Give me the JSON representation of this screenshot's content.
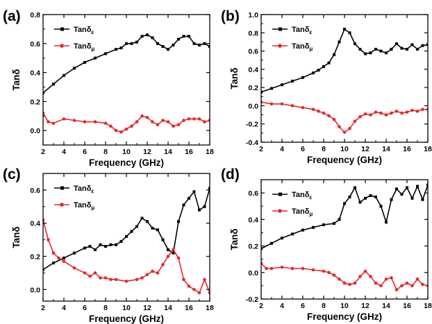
{
  "chart_data": [
    {
      "type": "line",
      "panel_label": "(a)",
      "xlabel": "Frequency (GHz)",
      "ylabel": "Tanδ",
      "xlim": [
        2,
        18
      ],
      "ylim": [
        -0.1,
        0.8
      ],
      "xticks": [
        2,
        4,
        6,
        8,
        10,
        12,
        14,
        16,
        18
      ],
      "yticks": [
        0.0,
        0.2,
        0.4,
        0.6,
        0.8
      ],
      "ytick_labels": [
        "0.0",
        "0.2",
        "0.4",
        "0.6",
        "0.8"
      ],
      "legend_position": "top-left",
      "series": [
        {
          "name": "Tanδε",
          "name_main": "Tanδ",
          "name_sub": "ε",
          "color": "#000000",
          "marker": "square",
          "x": [
            2,
            3,
            4,
            5,
            6,
            7,
            8,
            9,
            9.5,
            10,
            10.5,
            11,
            11.5,
            12,
            12.5,
            13,
            13.5,
            14,
            14.5,
            15,
            15.5,
            16,
            16.5,
            17,
            17.5,
            18
          ],
          "y": [
            0.26,
            0.32,
            0.38,
            0.43,
            0.47,
            0.5,
            0.53,
            0.56,
            0.57,
            0.6,
            0.6,
            0.61,
            0.65,
            0.66,
            0.64,
            0.6,
            0.58,
            0.56,
            0.59,
            0.63,
            0.65,
            0.65,
            0.6,
            0.59,
            0.6,
            0.58
          ]
        },
        {
          "name": "Tanδμ",
          "name_main": "Tanδ",
          "name_sub": "μ",
          "color": "#e8262b",
          "marker": "circle",
          "x": [
            2,
            2.5,
            3,
            4,
            5,
            6,
            7,
            8,
            8.5,
            9,
            9.5,
            10,
            10.5,
            11,
            11.5,
            12,
            12.5,
            13,
            13.5,
            14,
            14.5,
            15,
            15.5,
            16,
            16.5,
            17,
            17.5,
            18
          ],
          "y": [
            0.12,
            0.06,
            0.05,
            0.08,
            0.07,
            0.06,
            0.06,
            0.05,
            0.03,
            0.0,
            -0.01,
            0.01,
            0.03,
            0.06,
            0.1,
            0.09,
            0.06,
            0.04,
            0.07,
            0.06,
            0.03,
            0.04,
            0.07,
            0.08,
            0.08,
            0.08,
            0.06,
            0.07
          ]
        }
      ]
    },
    {
      "type": "line",
      "panel_label": "(b)",
      "xlabel": "Frequency (GHz)",
      "ylabel": "Tanδ",
      "xlim": [
        2,
        18
      ],
      "ylim": [
        -0.4,
        1.0
      ],
      "xticks": [
        2,
        4,
        6,
        8,
        10,
        12,
        14,
        16,
        18
      ],
      "yticks": [
        -0.4,
        -0.2,
        0.0,
        0.2,
        0.4,
        0.6,
        0.8,
        1.0
      ],
      "ytick_labels": [
        "-0.4",
        "-0.2",
        "0.0",
        "0.2",
        "0.4",
        "0.6",
        "0.8",
        "1.0"
      ],
      "legend_position": "top-left",
      "series": [
        {
          "name": "Tanδε",
          "name_main": "Tanδ",
          "name_sub": "ε",
          "color": "#000000",
          "marker": "square",
          "x": [
            2,
            3,
            4,
            5,
            6,
            7,
            7.5,
            8,
            8.5,
            9,
            9.5,
            10,
            10.5,
            11,
            11.5,
            12,
            12.5,
            13,
            13.5,
            14,
            14.5,
            15,
            15.5,
            16,
            16.5,
            17,
            17.5,
            18
          ],
          "y": [
            0.15,
            0.19,
            0.23,
            0.27,
            0.31,
            0.36,
            0.39,
            0.43,
            0.47,
            0.56,
            0.7,
            0.84,
            0.8,
            0.68,
            0.62,
            0.57,
            0.58,
            0.62,
            0.6,
            0.58,
            0.62,
            0.68,
            0.63,
            0.62,
            0.67,
            0.62,
            0.66,
            0.67
          ]
        },
        {
          "name": "Tanδμ",
          "name_main": "Tanδ",
          "name_sub": "μ",
          "color": "#e8262b",
          "marker": "circle",
          "x": [
            2,
            3,
            4,
            5,
            6,
            7,
            7.5,
            8,
            8.5,
            9,
            9.5,
            10,
            10.5,
            11,
            11.5,
            12,
            12.5,
            13,
            13.5,
            14,
            14.5,
            15,
            15.5,
            16,
            16.5,
            17,
            17.5,
            18
          ],
          "y": [
            0.04,
            0.02,
            0.02,
            0.0,
            -0.02,
            -0.04,
            -0.06,
            -0.08,
            -0.11,
            -0.15,
            -0.23,
            -0.29,
            -0.25,
            -0.17,
            -0.12,
            -0.09,
            -0.1,
            -0.07,
            -0.08,
            -0.1,
            -0.08,
            -0.06,
            -0.08,
            -0.07,
            -0.05,
            -0.06,
            -0.04,
            -0.04
          ]
        }
      ]
    },
    {
      "type": "line",
      "panel_label": "(c)",
      "xlabel": "Frequency (GHz)",
      "ylabel": "Tanδ",
      "xlim": [
        2,
        18
      ],
      "ylim": [
        -0.07,
        0.7
      ],
      "xticks": [
        2,
        4,
        6,
        8,
        10,
        12,
        14,
        16,
        18
      ],
      "yticks": [
        0.0,
        0.2,
        0.4,
        0.6
      ],
      "ytick_labels": [
        "0.0",
        "0.2",
        "0.4",
        "0.6"
      ],
      "legend_position": "top-left",
      "series": [
        {
          "name": "Tanδε",
          "name_main": "Tanδ",
          "name_sub": "ε",
          "color": "#000000",
          "marker": "square",
          "x": [
            2,
            3,
            4,
            5,
            6,
            6.5,
            7,
            7.5,
            8,
            8.5,
            9,
            9.5,
            10,
            10.5,
            11,
            11.5,
            12,
            12.5,
            13,
            13.5,
            14,
            14.5,
            15,
            15.5,
            16,
            16.5,
            17,
            17.5,
            18
          ],
          "y": [
            0.12,
            0.16,
            0.19,
            0.22,
            0.25,
            0.26,
            0.24,
            0.27,
            0.26,
            0.27,
            0.27,
            0.29,
            0.32,
            0.35,
            0.38,
            0.43,
            0.41,
            0.37,
            0.36,
            0.3,
            0.24,
            0.22,
            0.41,
            0.51,
            0.55,
            0.59,
            0.48,
            0.5,
            0.61
          ]
        },
        {
          "name": "Tanδμ",
          "name_main": "Tanδ",
          "name_sub": "μ",
          "color": "#e8262b",
          "marker": "circle",
          "x": [
            2,
            2.5,
            3,
            3.5,
            4,
            5,
            6,
            6.5,
            7,
            7.5,
            8,
            8.5,
            9,
            10,
            11,
            11.5,
            12,
            12.5,
            13,
            13.5,
            14,
            14.5,
            15,
            15.5,
            16,
            16.5,
            17,
            17.5,
            18
          ],
          "y": [
            0.42,
            0.3,
            0.22,
            0.19,
            0.17,
            0.13,
            0.1,
            0.08,
            0.1,
            0.07,
            0.07,
            0.06,
            0.06,
            0.05,
            0.06,
            0.07,
            0.09,
            0.11,
            0.1,
            0.15,
            0.2,
            0.24,
            0.19,
            0.06,
            0.02,
            0.0,
            -0.02,
            0.06,
            -0.02
          ]
        }
      ]
    },
    {
      "type": "line",
      "panel_label": "(d)",
      "xlabel": "Frequency (GHz)",
      "ylabel": "Tanδ",
      "xlim": [
        2,
        18
      ],
      "ylim": [
        -0.2,
        0.7
      ],
      "xticks": [
        2,
        4,
        6,
        8,
        10,
        12,
        14,
        16,
        18
      ],
      "yticks": [
        -0.2,
        0.0,
        0.2,
        0.4,
        0.6
      ],
      "ytick_labels": [
        "-0.2",
        "0.0",
        "0.2",
        "0.4",
        "0.6"
      ],
      "legend_position": "top-left",
      "series": [
        {
          "name": "Tanδε",
          "name_main": "Tanδ",
          "name_sub": "ε",
          "color": "#000000",
          "marker": "square",
          "x": [
            2,
            3,
            4,
            5,
            6,
            7,
            8,
            9,
            9.5,
            10,
            10.5,
            11,
            11.5,
            12,
            12.5,
            13,
            13.5,
            14,
            14.5,
            15,
            15.5,
            16,
            16.5,
            17,
            17.5,
            18
          ],
          "y": [
            0.18,
            0.22,
            0.26,
            0.29,
            0.32,
            0.34,
            0.36,
            0.37,
            0.4,
            0.52,
            0.57,
            0.64,
            0.53,
            0.56,
            0.58,
            0.57,
            0.5,
            0.38,
            0.55,
            0.63,
            0.59,
            0.64,
            0.56,
            0.65,
            0.55,
            0.66
          ]
        },
        {
          "name": "Tanδμ",
          "name_main": "Tanδ",
          "name_sub": "μ",
          "color": "#e8262b",
          "marker": "circle",
          "x": [
            2,
            2.5,
            3,
            4,
            5,
            6,
            7,
            8,
            8.5,
            9,
            9.5,
            10,
            10.5,
            11,
            11.5,
            12,
            12.5,
            13,
            13.5,
            14,
            14.5,
            15,
            15.5,
            16,
            16.5,
            17,
            17.5,
            18
          ],
          "y": [
            0.07,
            0.03,
            0.03,
            0.04,
            0.03,
            0.03,
            0.02,
            0.01,
            0.0,
            -0.02,
            -0.05,
            -0.08,
            -0.09,
            -0.08,
            -0.03,
            0.01,
            -0.03,
            -0.08,
            -0.1,
            -0.05,
            -0.04,
            -0.13,
            -0.1,
            -0.08,
            -0.1,
            -0.05,
            -0.09,
            -0.1
          ]
        }
      ]
    }
  ]
}
